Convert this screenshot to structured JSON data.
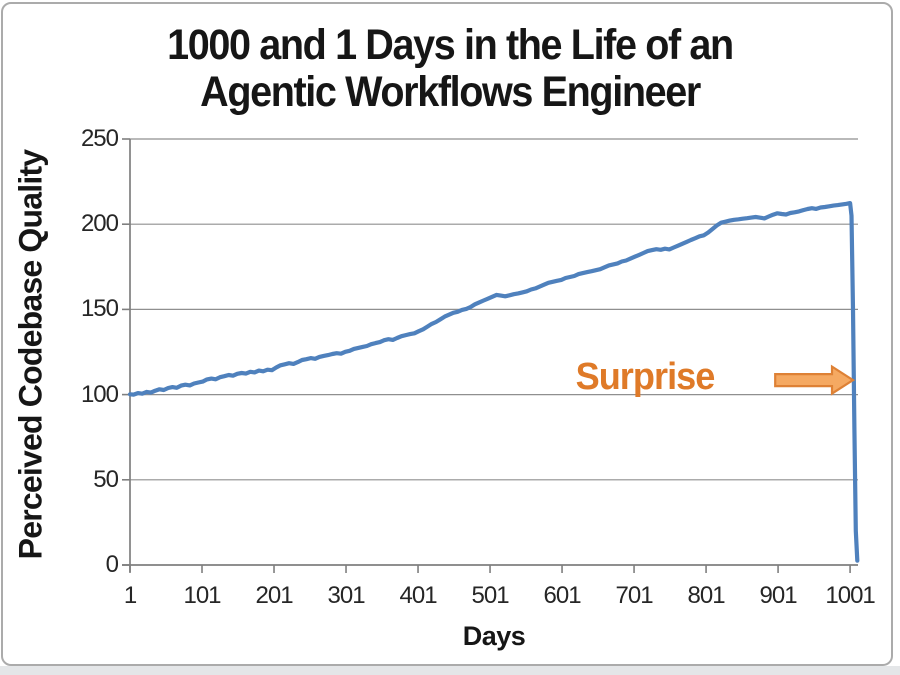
{
  "title": {
    "line1": "1000 and 1 Days in the Life of an",
    "line2": "Agentic Workflows Engineer"
  },
  "colors": {
    "line_blue": "#4F81BD",
    "surprise_orange": "#DF7A28",
    "arrow_fill": "#F5A962",
    "arrow_stroke": "#DE8135",
    "grid_gray": "#8f8f8f",
    "axis_gray": "#7f7f7f",
    "frame_gray": "#ababab"
  },
  "chart_data": {
    "type": "line",
    "title": "1000 and 1 Days in the Life of an Agentic Workflows Engineer",
    "xlabel": "Days",
    "ylabel": "Perceived Codebase Quality",
    "xlim": [
      1,
      1012
    ],
    "ylim": [
      0,
      250
    ],
    "x_ticks": [
      1,
      101,
      201,
      301,
      401,
      501,
      601,
      701,
      801,
      901,
      1001
    ],
    "y_ticks": [
      0,
      50,
      100,
      150,
      200,
      250
    ],
    "grid": "horizontal-only",
    "legend": "none",
    "series": [
      {
        "name": "Perceived Codebase Quality",
        "color": "#4F81BD",
        "points": [
          [
            1,
            100.2
          ],
          [
            6,
            100.0
          ],
          [
            12,
            100.9
          ],
          [
            18,
            100.5
          ],
          [
            24,
            101.6
          ],
          [
            30,
            101.2
          ],
          [
            36,
            102.3
          ],
          [
            42,
            103.1
          ],
          [
            48,
            102.7
          ],
          [
            54,
            103.9
          ],
          [
            60,
            104.4
          ],
          [
            66,
            104.0
          ],
          [
            72,
            105.3
          ],
          [
            78,
            105.8
          ],
          [
            84,
            105.4
          ],
          [
            90,
            106.5
          ],
          [
            96,
            107.1
          ],
          [
            102,
            107.6
          ],
          [
            108,
            108.9
          ],
          [
            114,
            109.4
          ],
          [
            120,
            109.0
          ],
          [
            126,
            110.2
          ],
          [
            132,
            110.8
          ],
          [
            138,
            111.5
          ],
          [
            144,
            111.1
          ],
          [
            150,
            112.2
          ],
          [
            156,
            112.7
          ],
          [
            162,
            112.3
          ],
          [
            168,
            113.4
          ],
          [
            174,
            113.0
          ],
          [
            180,
            114.1
          ],
          [
            186,
            113.7
          ],
          [
            192,
            114.6
          ],
          [
            198,
            114.3
          ],
          [
            204,
            115.9
          ],
          [
            210,
            117.2
          ],
          [
            216,
            117.8
          ],
          [
            222,
            118.4
          ],
          [
            228,
            118.0
          ],
          [
            234,
            119.1
          ],
          [
            240,
            120.3
          ],
          [
            246,
            120.8
          ],
          [
            252,
            121.4
          ],
          [
            258,
            121.0
          ],
          [
            264,
            122.1
          ],
          [
            270,
            122.7
          ],
          [
            276,
            123.2
          ],
          [
            282,
            123.8
          ],
          [
            288,
            124.3
          ],
          [
            294,
            124.0
          ],
          [
            300,
            125.1
          ],
          [
            306,
            125.7
          ],
          [
            312,
            126.8
          ],
          [
            318,
            127.4
          ],
          [
            324,
            128.0
          ],
          [
            330,
            128.5
          ],
          [
            336,
            129.6
          ],
          [
            342,
            130.2
          ],
          [
            348,
            130.8
          ],
          [
            354,
            131.9
          ],
          [
            360,
            132.5
          ],
          [
            366,
            132.1
          ],
          [
            372,
            133.2
          ],
          [
            378,
            134.3
          ],
          [
            384,
            134.9
          ],
          [
            390,
            135.5
          ],
          [
            396,
            136.0
          ],
          [
            402,
            137.2
          ],
          [
            408,
            138.3
          ],
          [
            414,
            139.9
          ],
          [
            420,
            141.5
          ],
          [
            426,
            142.6
          ],
          [
            432,
            144.2
          ],
          [
            438,
            145.8
          ],
          [
            444,
            146.9
          ],
          [
            450,
            148.0
          ],
          [
            456,
            148.6
          ],
          [
            462,
            149.7
          ],
          [
            468,
            150.3
          ],
          [
            474,
            151.4
          ],
          [
            480,
            153.0
          ],
          [
            486,
            154.1
          ],
          [
            492,
            155.2
          ],
          [
            498,
            156.3
          ],
          [
            504,
            157.4
          ],
          [
            510,
            158.5
          ],
          [
            516,
            158.1
          ],
          [
            522,
            157.7
          ],
          [
            528,
            158.3
          ],
          [
            534,
            158.9
          ],
          [
            540,
            159.4
          ],
          [
            546,
            160.0
          ],
          [
            552,
            160.6
          ],
          [
            558,
            161.7
          ],
          [
            564,
            162.3
          ],
          [
            570,
            163.4
          ],
          [
            576,
            164.5
          ],
          [
            582,
            165.6
          ],
          [
            588,
            166.2
          ],
          [
            594,
            166.8
          ],
          [
            600,
            167.3
          ],
          [
            606,
            168.4
          ],
          [
            612,
            169.0
          ],
          [
            618,
            169.6
          ],
          [
            624,
            170.7
          ],
          [
            630,
            171.3
          ],
          [
            636,
            171.9
          ],
          [
            642,
            172.4
          ],
          [
            648,
            173.0
          ],
          [
            654,
            173.6
          ],
          [
            660,
            174.7
          ],
          [
            666,
            175.8
          ],
          [
            672,
            176.4
          ],
          [
            678,
            177.0
          ],
          [
            684,
            178.1
          ],
          [
            690,
            178.7
          ],
          [
            696,
            179.8
          ],
          [
            702,
            180.9
          ],
          [
            708,
            182.0
          ],
          [
            714,
            183.1
          ],
          [
            720,
            184.2
          ],
          [
            726,
            184.8
          ],
          [
            732,
            185.3
          ],
          [
            738,
            185.0
          ],
          [
            744,
            185.6
          ],
          [
            750,
            185.2
          ],
          [
            756,
            186.3
          ],
          [
            762,
            187.4
          ],
          [
            768,
            188.5
          ],
          [
            774,
            189.6
          ],
          [
            780,
            190.7
          ],
          [
            786,
            191.8
          ],
          [
            792,
            192.9
          ],
          [
            798,
            193.5
          ],
          [
            804,
            195.1
          ],
          [
            810,
            197.2
          ],
          [
            816,
            199.3
          ],
          [
            822,
            200.9
          ],
          [
            828,
            201.5
          ],
          [
            834,
            202.1
          ],
          [
            840,
            202.6
          ],
          [
            846,
            202.9
          ],
          [
            852,
            203.2
          ],
          [
            858,
            203.5
          ],
          [
            864,
            203.9
          ],
          [
            870,
            204.2
          ],
          [
            876,
            203.8
          ],
          [
            882,
            203.4
          ],
          [
            888,
            204.5
          ],
          [
            894,
            205.6
          ],
          [
            900,
            206.4
          ],
          [
            906,
            206.0
          ],
          [
            912,
            205.7
          ],
          [
            918,
            206.6
          ],
          [
            924,
            207.0
          ],
          [
            930,
            207.5
          ],
          [
            936,
            208.3
          ],
          [
            942,
            208.9
          ],
          [
            948,
            209.4
          ],
          [
            954,
            209.0
          ],
          [
            960,
            209.8
          ],
          [
            966,
            210.1
          ],
          [
            972,
            210.5
          ],
          [
            978,
            210.9
          ],
          [
            984,
            211.2
          ],
          [
            990,
            211.6
          ],
          [
            996,
            212.0
          ],
          [
            1001,
            212.4
          ],
          [
            1003,
            205.0
          ],
          [
            1005,
            150.0
          ],
          [
            1007,
            80.0
          ],
          [
            1009,
            20.0
          ],
          [
            1011,
            2.5
          ]
        ]
      }
    ],
    "annotations": [
      {
        "id": "surprise",
        "text": "Surprise",
        "color": "#DF7A28",
        "anchor_day": 716,
        "anchor_value": 108.5,
        "arrow": {
          "tail_day": 897,
          "tip_day": 1005,
          "value": 108.5,
          "fill": "#F5A962",
          "stroke": "#DE8135"
        }
      }
    ]
  }
}
